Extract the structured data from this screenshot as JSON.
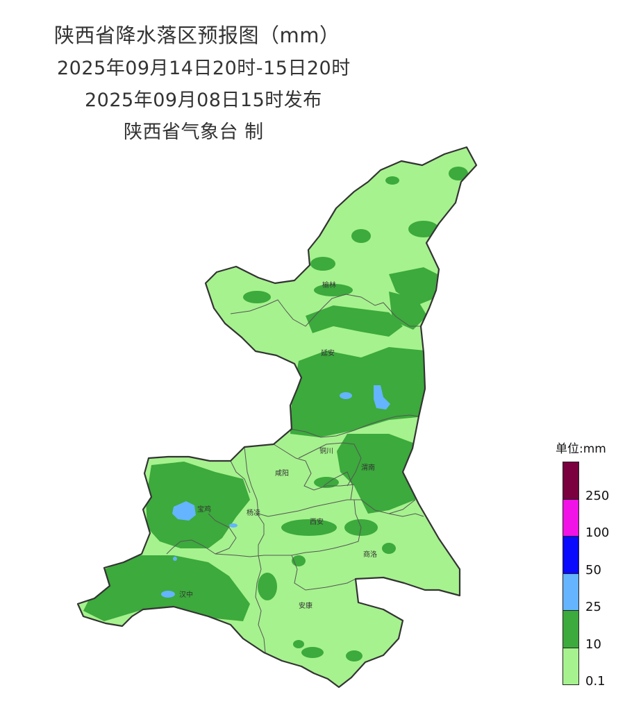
{
  "header": {
    "title": "陕西省降水落区预报图（mm）",
    "period": "2025年09月14日20时-15日20时",
    "issued": "2025年09月08日15时发布",
    "producer": "陕西省气象台 制"
  },
  "cities": [
    {
      "name": "榆林"
    },
    {
      "name": "延安"
    },
    {
      "name": "铜川"
    },
    {
      "name": "渭南"
    },
    {
      "name": "咸阳"
    },
    {
      "name": "宝鸡"
    },
    {
      "name": "杨凌"
    },
    {
      "name": "西安"
    },
    {
      "name": "商洛"
    },
    {
      "name": "汉中"
    },
    {
      "name": "安康"
    }
  ],
  "legend": {
    "title": "单位:mm",
    "classes": [
      {
        "range": "≥250",
        "color": "#7a0040"
      },
      {
        "range": "100-250",
        "color": "#f012e6"
      },
      {
        "range": "50-100",
        "color": "#0a0aff"
      },
      {
        "range": "25-50",
        "color": "#64b4ff"
      },
      {
        "range": "10-25",
        "color": "#3caa3c"
      },
      {
        "range": "0.1-10",
        "color": "#a6f28e"
      }
    ],
    "ticks": [
      "250",
      "100",
      "50",
      "25",
      "10",
      "0.1"
    ]
  },
  "colors": {
    "light_rain": "#a6f28e",
    "moderate_rain": "#3caa3c",
    "heavy_rain": "#64b4ff",
    "boundary": "#333333"
  }
}
